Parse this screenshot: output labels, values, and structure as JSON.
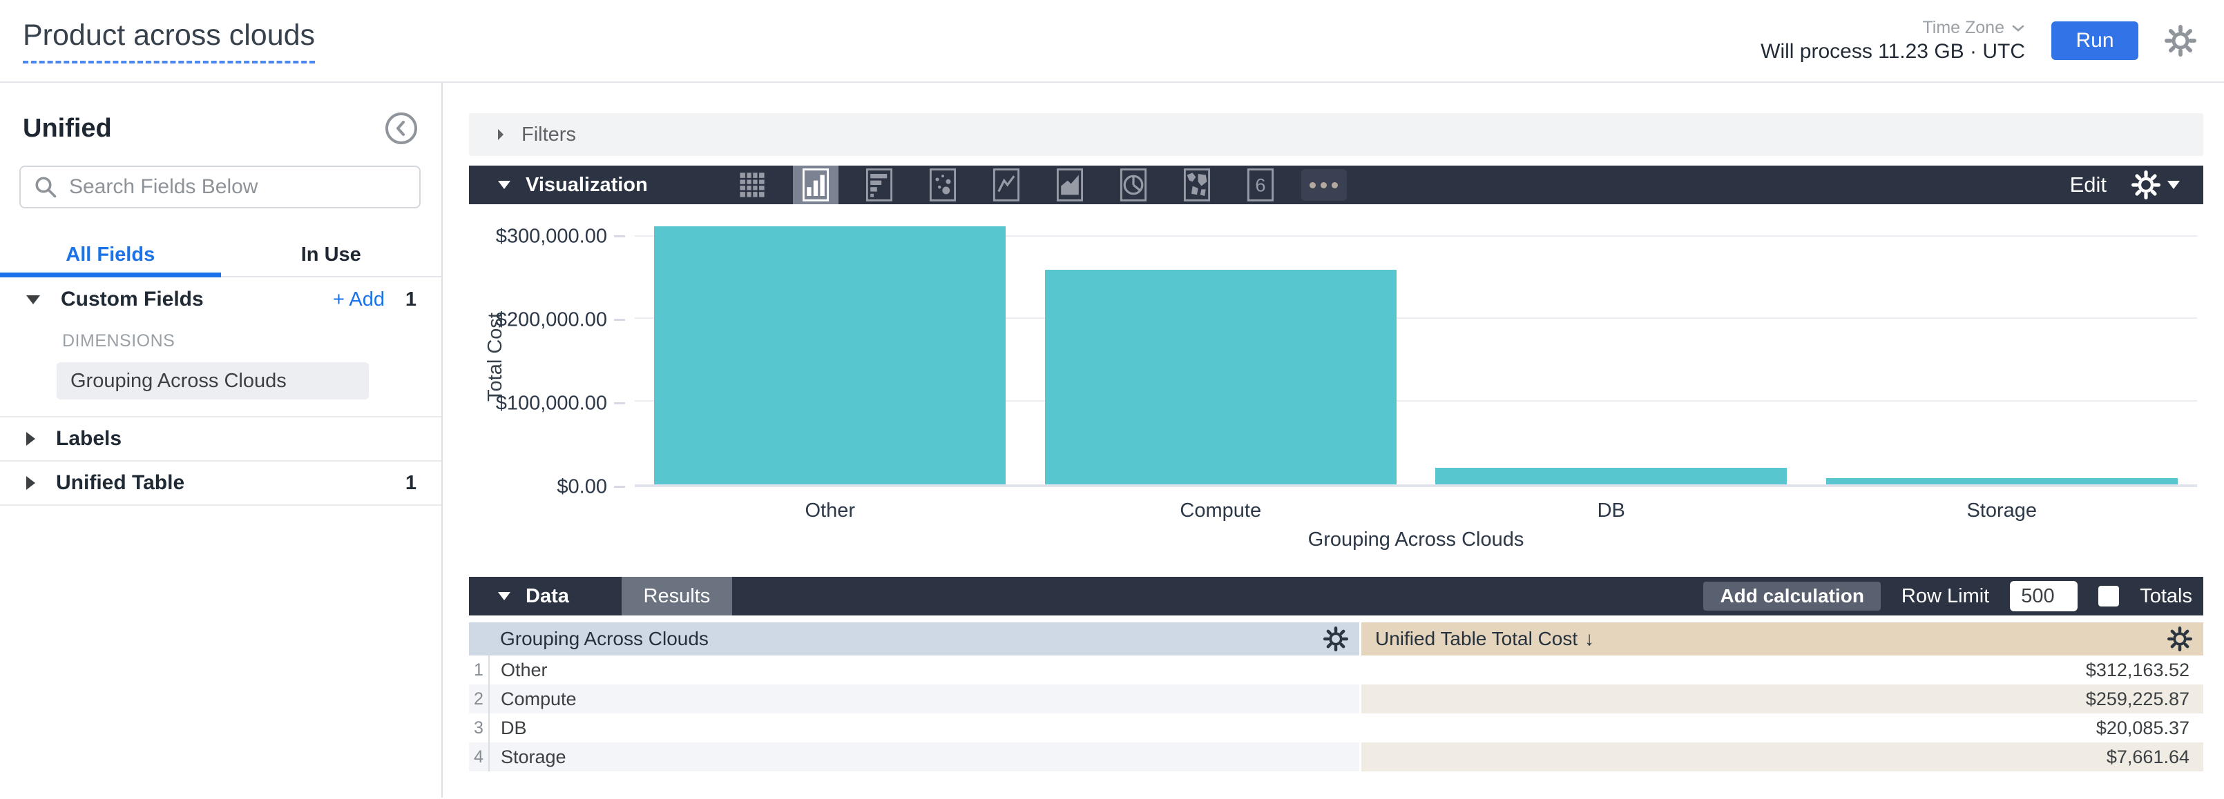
{
  "header": {
    "title": "Product across clouds",
    "process_text": "Will process 11.23 GB · UTC",
    "time_zone_label": "Time Zone",
    "run_label": "Run"
  },
  "sidebar": {
    "title": "Unified",
    "search_placeholder": "Search Fields Below",
    "tabs": [
      {
        "label": "All Fields",
        "active": true
      },
      {
        "label": "In Use",
        "active": false
      }
    ],
    "custom_fields": {
      "label": "Custom Fields",
      "add_label": "+ Add",
      "count": "1",
      "dimensions_label": "DIMENSIONS",
      "field": "Grouping Across Clouds"
    },
    "labels_section": {
      "label": "Labels"
    },
    "unified_table_section": {
      "label": "Unified Table",
      "count": "1"
    }
  },
  "filters": {
    "label": "Filters"
  },
  "visualization": {
    "label": "Visualization",
    "edit_label": "Edit",
    "icons": [
      "table",
      "column-chart",
      "bar-chart",
      "scatter",
      "line-chart",
      "area-chart",
      "pie-chart",
      "map",
      "single-value",
      "more"
    ]
  },
  "chart_data": {
    "type": "bar",
    "title": "",
    "categories": [
      "Other",
      "Compute",
      "DB",
      "Storage"
    ],
    "values": [
      312163.52,
      259225.87,
      20085.37,
      7661.64
    ],
    "xlabel": "Grouping Across Clouds",
    "ylabel": "Total Cost",
    "ylim": [
      0,
      312163.52
    ],
    "yticks": [
      {
        "value": 0,
        "label": "$0.00"
      },
      {
        "value": 100000,
        "label": "$100,000.00"
      },
      {
        "value": 200000,
        "label": "$200,000.00"
      },
      {
        "value": 300000,
        "label": "$300,000.00"
      }
    ],
    "grid": true,
    "legend": "none",
    "bar_color": "#57c6ce"
  },
  "data_bar": {
    "label": "Data",
    "results_tab": "Results",
    "add_calculation": "Add calculation",
    "row_limit_label": "Row Limit",
    "row_limit_value": "500",
    "totals_label": "Totals"
  },
  "table": {
    "dim_header": "Grouping Across Clouds",
    "measure_header": "Unified Table Total Cost",
    "sort_arrow": "↓",
    "rows": [
      {
        "num": "1",
        "dimension": "Other",
        "value": "$312,163.52"
      },
      {
        "num": "2",
        "dimension": "Compute",
        "value": "$259,225.87"
      },
      {
        "num": "3",
        "dimension": "DB",
        "value": "$20,085.37"
      },
      {
        "num": "4",
        "dimension": "Storage",
        "value": "$7,661.64"
      }
    ]
  },
  "colors": {
    "run_button_blue": "#3273e8",
    "link_blue": "#1a73e8",
    "bar_teal": "#57c6ce",
    "dark_toolbar": "#2c3343",
    "dim_header_bg": "#cfd9e5",
    "measure_header_bg": "#e5d5bd",
    "measure_stripe_bg": "#f0ece3",
    "dim_stripe_bg": "#f3f5f8",
    "title_underline_blue": "#4c86f0"
  }
}
